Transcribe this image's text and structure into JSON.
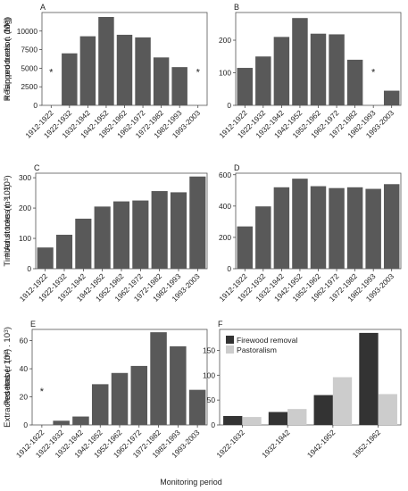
{
  "figure": {
    "xlabel": "Monitoring period"
  },
  "colors": {
    "bar": "#595959",
    "firewood": "#333333",
    "pastoralism": "#cccccc",
    "frame": "#555555",
    "tick": "#333333"
  },
  "chart_data": [
    {
      "panel": "A",
      "type": "bar",
      "ylabel": "Resin production (Mg)",
      "categories": [
        "1912-1922",
        "1922-1932",
        "1932-1942",
        "1942-1952",
        "1952-1962",
        "1962-1972",
        "1972-1982",
        "1982-1993",
        "1993-2003"
      ],
      "values": [
        null,
        7000,
        9300,
        11900,
        9500,
        9150,
        6450,
        5150,
        null
      ],
      "missing_marker": "*",
      "ylim": [
        0,
        12500
      ],
      "yticks": [
        0,
        2500,
        5000,
        7500,
        10000
      ],
      "ytick_labels": [
        "0",
        "2500",
        "5000",
        "7500",
        "10000"
      ]
    },
    {
      "panel": "B",
      "type": "bar",
      "ylabel": "# Tapped trees (. 10³)",
      "categories": [
        "1912-1922",
        "1922-1932",
        "1932-1942",
        "1942-1952",
        "1952-1962",
        "1962-1972",
        "1972-1982",
        "1982-1993",
        "1993-2003"
      ],
      "values": [
        115,
        150,
        210,
        268,
        220,
        218,
        140,
        null,
        45
      ],
      "missing_marker": "*",
      "ylim": [
        0,
        285
      ],
      "yticks": [
        0,
        100,
        200
      ],
      "ytick_labels": [
        "0",
        "100",
        "200"
      ]
    },
    {
      "panel": "C",
      "type": "bar",
      "ylabel": "Timber stocks (m³ . 10³)",
      "categories": [
        "1912-1922",
        "1922-1932",
        "1932-1942",
        "1942-1952",
        "1952-1962",
        "1962-1972",
        "1972-1982",
        "1982-1993",
        "1993-2003"
      ],
      "values": [
        70,
        112,
        165,
        205,
        222,
        225,
        256,
        252,
        304
      ],
      "ylim": [
        0,
        315
      ],
      "yticks": [
        0,
        100,
        200,
        300
      ],
      "ytick_labels": [
        "0",
        "100",
        "200",
        "300"
      ]
    },
    {
      "panel": "D",
      "type": "bar",
      "ylabel": "# Adult trees (. 10³)",
      "categories": [
        "1912-1922",
        "1922-1932",
        "1932-1942",
        "1942-1952",
        "1952-1962",
        "1962-1972",
        "1972-1982",
        "1982-1993",
        "1993-2003"
      ],
      "values": [
        270,
        398,
        520,
        575,
        527,
        515,
        520,
        510,
        540
      ],
      "ylim": [
        0,
        610
      ],
      "yticks": [
        0,
        200,
        400,
        600
      ],
      "ytick_labels": [
        "0",
        "200",
        "400",
        "600"
      ]
    },
    {
      "panel": "E",
      "type": "bar",
      "ylabel": "Extracted timber (m³ . 10³)",
      "categories": [
        "1912-1922",
        "1922-1932",
        "1932-1942",
        "1942-1952",
        "1952-1962",
        "1962-1972",
        "1972-1982",
        "1982-1993",
        "1993-2003"
      ],
      "values": [
        null,
        3,
        6,
        29,
        37,
        42,
        66,
        56,
        25
      ],
      "missing_marker": "*",
      "ylim": [
        0,
        68
      ],
      "yticks": [
        0,
        20,
        40,
        60
      ],
      "ytick_labels": [
        "0",
        "20",
        "40",
        "60"
      ]
    },
    {
      "panel": "F",
      "type": "bar",
      "ylabel": "Pesetas (. 10³)",
      "categories": [
        "1922-1932",
        "1932-1942",
        "1942-1952",
        "1952-1962"
      ],
      "series": [
        {
          "name": "Firewood removal",
          "values": [
            18,
            26,
            60,
            185
          ]
        },
        {
          "name": "Pastoralism",
          "values": [
            16,
            32,
            96,
            62
          ]
        }
      ],
      "legend": "top-left",
      "ylim": [
        0,
        192
      ],
      "yticks": [
        0,
        50,
        100,
        150
      ],
      "ytick_labels": [
        "0",
        "50",
        "100",
        "150"
      ]
    }
  ]
}
